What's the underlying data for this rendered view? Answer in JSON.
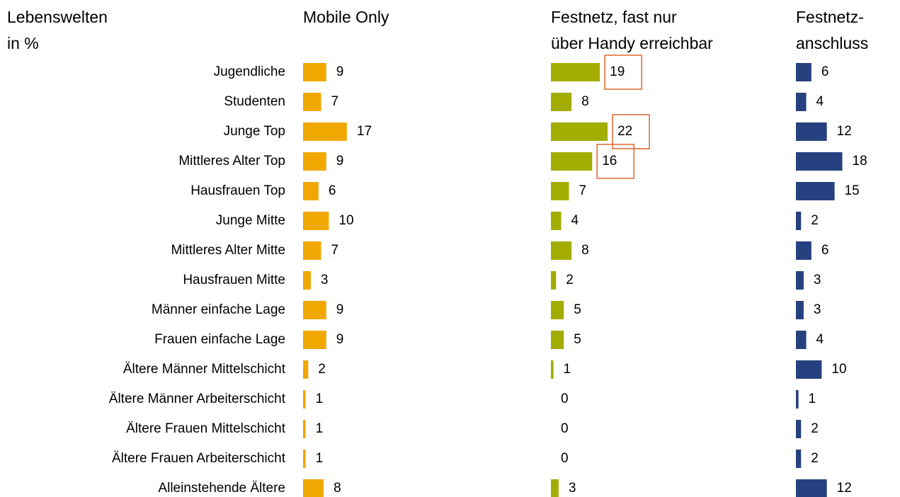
{
  "chart_data": {
    "type": "bar",
    "title": [
      "Lebenswelten",
      "in %"
    ],
    "categories": [
      "Jugendliche",
      "Studenten",
      "Junge Top",
      "Mittleres Alter Top",
      "Hausfrauen Top",
      "Junge Mitte",
      "Mittleres Alter Mitte",
      "Hausfrauen Mitte",
      "Männer einfache Lage",
      "Frauen einfache Lage",
      "Ältere Männer Mittelschicht",
      "Ältere Männer Arbeiterschicht",
      "Ältere Frauen Mittelschicht",
      "Ältere Frauen Arbeiterschicht",
      "Alleinstehende Ältere"
    ],
    "series": [
      {
        "name": [
          "Mobile Only"
        ],
        "color": "#f0a800",
        "values": [
          9,
          7,
          17,
          9,
          6,
          10,
          7,
          3,
          9,
          9,
          2,
          1,
          1,
          1,
          8
        ]
      },
      {
        "name": [
          "Festnetz, fast nur",
          "über Handy erreichbar"
        ],
        "color": "#a3ad00",
        "values": [
          19,
          8,
          22,
          16,
          7,
          4,
          8,
          2,
          5,
          5,
          1,
          0,
          0,
          0,
          3
        ],
        "highlights": [
          "Jugendliche",
          "Junge Top",
          "Mittleres Alter Top"
        ],
        "highlight_color": "#e0662a"
      },
      {
        "name": [
          "Festnetz-",
          "anschluss"
        ],
        "color": "#26417f",
        "values": [
          6,
          4,
          12,
          18,
          15,
          2,
          6,
          3,
          3,
          4,
          10,
          1,
          2,
          2,
          12
        ]
      }
    ]
  }
}
